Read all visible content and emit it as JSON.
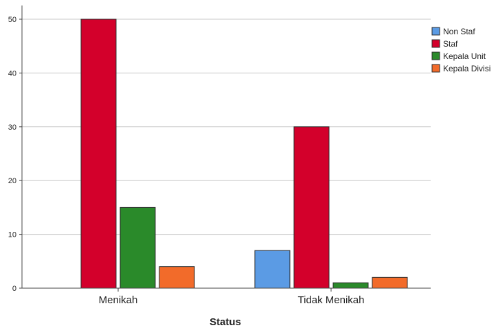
{
  "chart_data": {
    "type": "bar",
    "categories": [
      "Menikah",
      "Tidak Menikah"
    ],
    "series": [
      {
        "name": "Non Staf",
        "color": "#5B9BE4",
        "values": [
          0,
          7
        ]
      },
      {
        "name": "Staf",
        "color": "#D3002B",
        "values": [
          50,
          30
        ]
      },
      {
        "name": "Kepala Unit",
        "color": "#2A8A2A",
        "values": [
          15,
          1
        ]
      },
      {
        "name": "Kepala Divisi",
        "color": "#F26B2A",
        "values": [
          4,
          2
        ]
      }
    ],
    "title": "",
    "xlabel": "Status",
    "ylabel": "",
    "ylim": [
      0,
      50
    ],
    "yticks": [
      0,
      10,
      20,
      30,
      40,
      50
    ],
    "grid": true,
    "legend_position": "top-right"
  }
}
